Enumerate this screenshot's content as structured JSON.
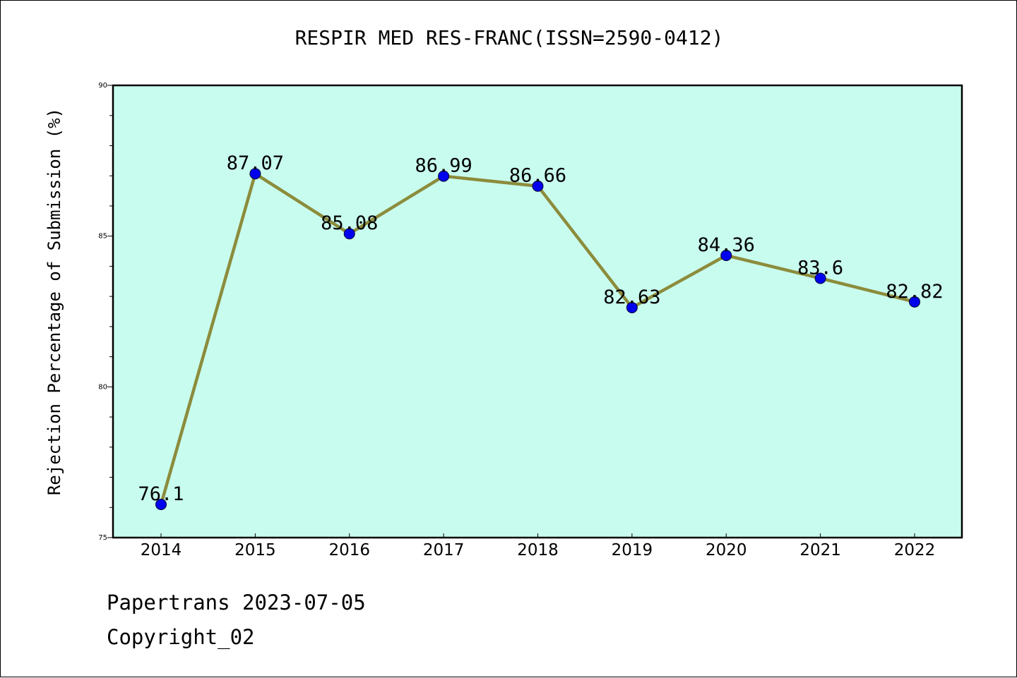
{
  "chart_data": {
    "type": "line",
    "title": "RESPIR MED RES-FRANC(ISSN=2590-0412)",
    "xlabel": "",
    "ylabel": "Rejection Percentage of Submission (%)",
    "categories": [
      "2014",
      "2015",
      "2016",
      "2017",
      "2018",
      "2019",
      "2020",
      "2021",
      "2022"
    ],
    "series": [
      {
        "values": [
          76.1,
          87.07,
          85.08,
          86.99,
          86.66,
          82.63,
          84.36,
          83.6,
          82.82
        ],
        "data_labels": [
          "76.1",
          "87.07",
          "85.08",
          "86.99",
          "86.66",
          "82.63",
          "84.36",
          "83.6",
          "82.82"
        ]
      }
    ],
    "ylim": [
      75,
      90
    ],
    "yticks": [
      75,
      80,
      85,
      90
    ],
    "ytick_labels": [
      "75",
      "80",
      "85",
      "90"
    ],
    "grid": false,
    "colors": {
      "plot_background": "#c8fcee",
      "line": "#8c8c3c",
      "marker": "#0000ee",
      "frame": "#000000"
    }
  },
  "footer": {
    "line1": "Papertrans 2023-07-05",
    "line2": "Copyright_02"
  }
}
